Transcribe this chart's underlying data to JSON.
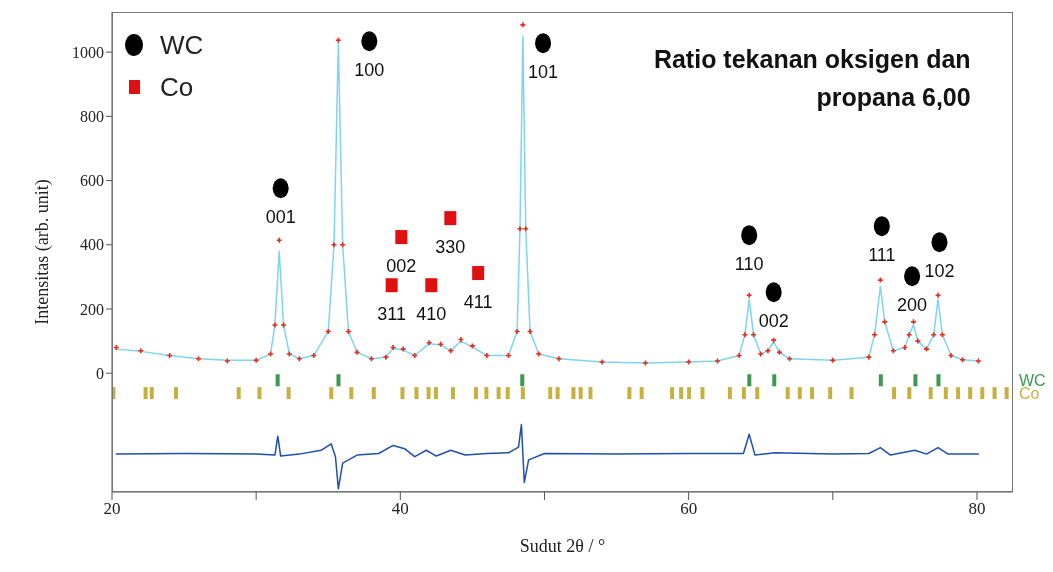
{
  "chart_data": {
    "type": "line",
    "title": "Ratio tekanan oksigen dan propana 6,00",
    "xlabel": "Sudut 2θ / °",
    "ylabel": "Intensitas (arb. unit)",
    "xlim": [
      20,
      82.5
    ],
    "xticks": [
      20,
      {
        "value": 30,
        "label": null
      },
      40,
      {
        "value": 50,
        "label": null
      },
      60,
      {
        "value": 70,
        "label": null
      },
      80
    ],
    "ylim": [
      -370,
      1125
    ],
    "yticks": [
      0,
      200,
      400,
      600,
      800,
      1000
    ],
    "legend": "top left",
    "series": [
      {
        "type": "line",
        "color": "#7fd4f0",
        "marker": "none",
        "x": [
          20.3,
          22,
          24,
          26,
          28,
          30,
          31,
          31.3,
          31.6,
          31.9,
          32.3,
          33,
          34,
          35,
          35.4,
          35.7,
          36,
          36.4,
          37,
          38,
          39,
          39.5,
          40.2,
          41,
          42,
          42.8,
          43.5,
          44.2,
          45,
          46,
          47.5,
          48.1,
          48.3,
          48.5,
          48.7,
          49,
          49.6,
          51,
          54,
          57,
          60,
          62,
          63.5,
          63.9,
          64.2,
          64.5,
          65,
          65.5,
          65.9,
          66.3,
          67,
          70,
          72.5,
          72.9,
          73.3,
          73.6,
          74.2,
          75,
          75.3,
          75.6,
          75.9,
          76.5,
          77,
          77.3,
          77.6,
          78.2,
          79,
          80.1
        ],
        "values": [
          75,
          68,
          55,
          45,
          40,
          40,
          60,
          150,
          380,
          150,
          60,
          45,
          55,
          130,
          400,
          1030,
          400,
          130,
          65,
          45,
          50,
          78,
          72,
          55,
          92,
          88,
          70,
          100,
          82,
          55,
          55,
          130,
          450,
          1050,
          450,
          130,
          60,
          45,
          35,
          32,
          35,
          38,
          55,
          120,
          230,
          120,
          60,
          70,
          98,
          65,
          45,
          40,
          50,
          120,
          270,
          160,
          70,
          80,
          120,
          150,
          100,
          75,
          120,
          230,
          120,
          55,
          42,
          38
        ]
      },
      {
        "type": "scatter",
        "color": "#e03020",
        "marker": "cross",
        "x": [
          20.3,
          22,
          24,
          26,
          28,
          30,
          31,
          31.3,
          31.6,
          31.9,
          32.3,
          33,
          34,
          35,
          35.4,
          35.7,
          36,
          36.4,
          37,
          38,
          39,
          39.5,
          40.2,
          41,
          42,
          42.8,
          43.5,
          44.2,
          45,
          46,
          47.5,
          48.1,
          48.3,
          48.5,
          48.7,
          49,
          49.6,
          51,
          54,
          57,
          60,
          62,
          63.5,
          63.9,
          64.2,
          64.5,
          65,
          65.5,
          65.9,
          66.3,
          67,
          70,
          72.5,
          72.9,
          73.3,
          73.6,
          74.2,
          75,
          75.3,
          75.6,
          75.9,
          76.5,
          77,
          77.3,
          77.6,
          78.2,
          79,
          80.1
        ],
        "values": [
          80,
          70,
          55,
          45,
          38,
          40,
          60,
          150,
          414,
          150,
          60,
          45,
          55,
          130,
          400,
          1037,
          400,
          130,
          65,
          45,
          50,
          80,
          75,
          55,
          95,
          90,
          70,
          105,
          85,
          55,
          55,
          130,
          450,
          1085,
          450,
          130,
          60,
          45,
          35,
          32,
          35,
          38,
          55,
          120,
          243,
          120,
          60,
          70,
          103,
          65,
          45,
          40,
          50,
          120,
          290,
          160,
          70,
          80,
          120,
          160,
          100,
          75,
          120,
          243,
          120,
          55,
          42,
          38
        ]
      },
      {
        "type": "line",
        "color": "#1f4fb0",
        "marker": "none",
        "x": [
          20.3,
          25,
          30,
          31.3,
          31.5,
          31.7,
          33,
          34.5,
          35.2,
          35.5,
          35.7,
          36,
          37,
          38.5,
          39.5,
          40.3,
          41,
          41.8,
          42.5,
          43.5,
          44.5,
          46,
          47.5,
          48.2,
          48.4,
          48.6,
          48.9,
          50,
          55,
          60,
          63.8,
          64.2,
          64.6,
          66,
          70,
          72.5,
          73.3,
          74,
          75.7,
          76.5,
          77.3,
          78,
          80.1
        ],
        "values": [
          -252,
          -250,
          -252,
          -255,
          -196,
          -258,
          -252,
          -240,
          -220,
          -260,
          -360,
          -280,
          -255,
          -250,
          -225,
          -235,
          -260,
          -240,
          -258,
          -240,
          -255,
          -250,
          -248,
          -230,
          -160,
          -340,
          -270,
          -250,
          -252,
          -250,
          -250,
          -190,
          -255,
          -248,
          -252,
          -250,
          -232,
          -255,
          -240,
          -252,
          -232,
          -252,
          -252
        ]
      },
      {
        "type": "scatter",
        "name": "WC",
        "color": "#3a9a50",
        "x": [
          31.49,
          35.71,
          48.46,
          64.21,
          65.94,
          73.33,
          75.73,
          77.33
        ],
        "values": [
          -22,
          -22,
          -22,
          -22,
          -22,
          -22,
          -22,
          -22
        ]
      },
      {
        "type": "scatter",
        "name": "Co",
        "color": "#c8b040",
        "x": [
          20.1,
          22.33,
          22.76,
          24.44,
          28.79,
          30.23,
          32.25,
          35.21,
          36.6,
          38.16,
          40.15,
          41.12,
          41.96,
          42.47,
          43.65,
          45.25,
          45.97,
          46.82,
          47.45,
          48.5,
          50.4,
          50.91,
          52.01,
          52.51,
          53.19,
          55.89,
          56.74,
          58.85,
          59.48,
          60.03,
          60.96,
          62.86,
          63.83,
          64.76,
          66.87,
          67.71,
          68.56,
          69.82,
          71.3,
          74.25,
          75.31,
          76.79,
          77.84,
          78.69,
          79.53,
          80.37,
          81.22,
          82.06
        ],
        "values": [
          -62,
          -62,
          -62,
          -62,
          -62,
          -62,
          -62,
          -62,
          -62,
          -62,
          -62,
          -62,
          -62,
          -62,
          -62,
          -62,
          -62,
          -62,
          -62,
          -62,
          -62,
          -62,
          -62,
          -62,
          -62,
          -62,
          -62,
          -62,
          -62,
          -62,
          -62,
          -62,
          -62,
          -62,
          -62,
          -62,
          -62,
          -62,
          -62,
          -62,
          -62,
          -62,
          -62,
          -62,
          -62,
          -62,
          -62,
          -62
        ]
      },
      {
        "type": "scatter",
        "name": "WC",
        "color": "#000000",
        "marker": "circle",
        "x": [
          31.7,
          37.85,
          49.9,
          64.2,
          65.9,
          73.4,
          75.5,
          77.4
        ],
        "values": [
          576,
          1034,
          1028,
          430,
          252,
          458,
          302,
          408
        ]
      },
      {
        "type": "scatter",
        "name": "Co",
        "color": "#e01010",
        "marker": "square",
        "x": [
          40.07,
          39.4,
          42.15,
          43.47,
          45.4
        ],
        "values": [
          424,
          274,
          274,
          483,
          312
        ]
      }
    ],
    "annotations": [
      {
        "text": "001",
        "x": 31.7,
        "y": 576
      },
      {
        "text": "100",
        "x": 37.85,
        "y": 1034
      },
      {
        "text": "101",
        "x": 49.9,
        "y": 1028
      },
      {
        "text": "110",
        "x": 64.2,
        "y": 430
      },
      {
        "text": "002",
        "x": 65.9,
        "y": 252
      },
      {
        "text": "111",
        "x": 73.4,
        "y": 458
      },
      {
        "text": "200",
        "x": 75.5,
        "y": 302
      },
      {
        "text": "102",
        "x": 77.4,
        "y": 408
      },
      {
        "text": "002",
        "x": 40.07,
        "y": 424
      },
      {
        "text": "311",
        "x": 39.4,
        "y": 274
      },
      {
        "text": "410",
        "x": 42.15,
        "y": 274
      },
      {
        "text": "330",
        "x": 43.47,
        "y": 483
      },
      {
        "text": "411",
        "x": 45.4,
        "y": 312
      }
    ]
  }
}
